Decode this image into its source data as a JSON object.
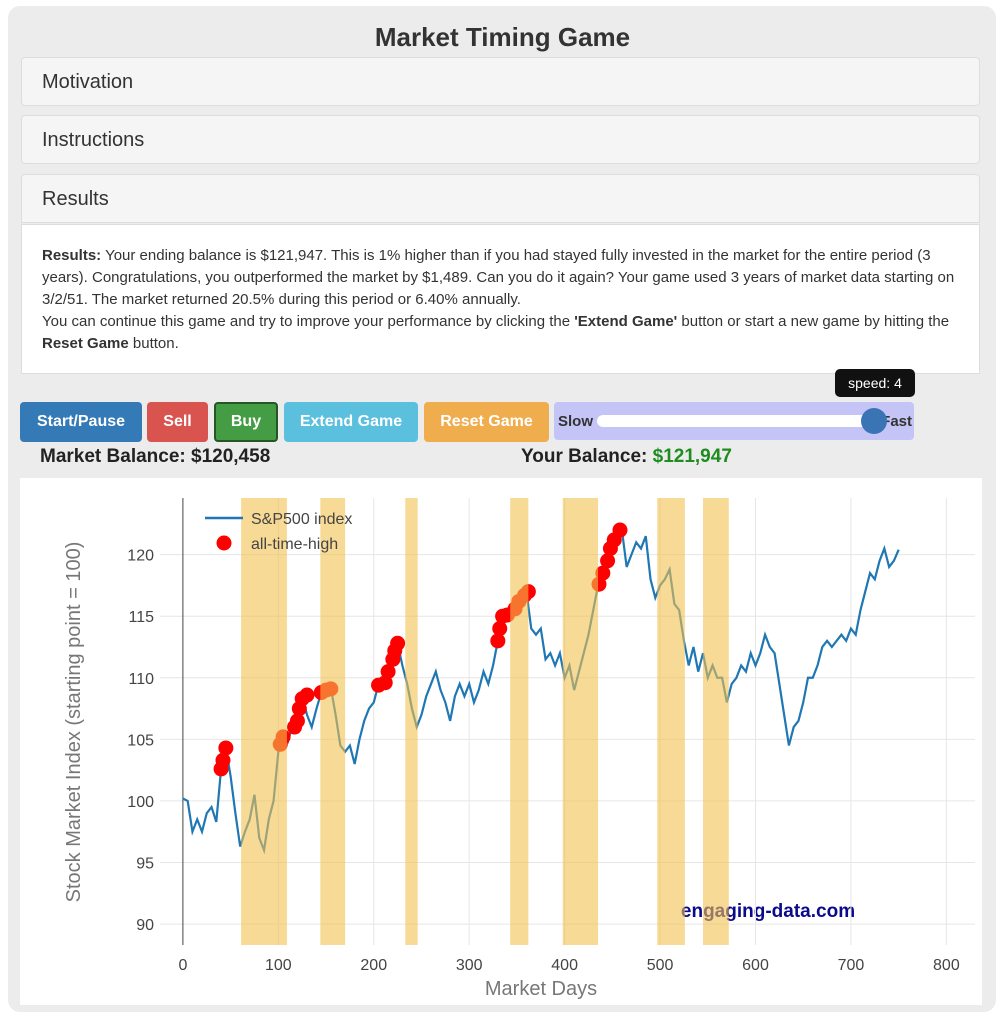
{
  "header": {
    "title": "Market Timing Game"
  },
  "panels": [
    "Motivation",
    "Instructions",
    "Results"
  ],
  "results": {
    "p1": [
      "Results:",
      " Your ending balance is $121,947. This is 1% higher than if you had stayed fully invested in the market for the entire period (3 years). Congratulations, you outperformed the market by $1,489. Can you do it again? Your game used 3 years of market data starting on 3/2/51. The market returned 20.5% during this period or 6.40% annually."
    ],
    "p2": [
      "You can continue this game and try to improve your performance by clicking the ",
      "'Extend Game'",
      " button or start a new game by hitting the ",
      "Reset Game",
      " button."
    ]
  },
  "buttons": [
    "Start/Pause",
    "Sell",
    "Buy",
    "Extend Game",
    "Reset Game"
  ],
  "slider": {
    "left": "Slow",
    "right": "Fast",
    "tooltip": "speed: 4"
  },
  "balances": {
    "market_label": "Market Balance:",
    "market_value": "$120,458",
    "your_label": "Your Balance:",
    "your_value": "$121,947"
  },
  "chart_data": {
    "type": "line",
    "xlabel": "Market Days",
    "ylabel": "Stock Market Index (starting point = 100)",
    "annotation": "engaging-data.com",
    "xlim": [
      -24,
      830
    ],
    "ylim": [
      88.3,
      124.6
    ],
    "xticks": [
      0,
      100,
      200,
      300,
      400,
      500,
      600,
      700,
      800
    ],
    "yticks": [
      90,
      95,
      100,
      105,
      110,
      115,
      120
    ],
    "grid": true,
    "shaded_ranges": [
      [
        61,
        109
      ],
      [
        144,
        170
      ],
      [
        233,
        246
      ],
      [
        343,
        362
      ],
      [
        398,
        435
      ],
      [
        497,
        526
      ],
      [
        545,
        572
      ]
    ],
    "series": [
      {
        "name": "S&P500 index",
        "color": "#1f77b4",
        "x": [
          0,
          5,
          10,
          15,
          20,
          25,
          30,
          35,
          40,
          45,
          50,
          55,
          60,
          65,
          70,
          75,
          80,
          85,
          90,
          95,
          100,
          105,
          110,
          115,
          120,
          125,
          130,
          135,
          140,
          145,
          150,
          155,
          160,
          165,
          170,
          175,
          180,
          185,
          190,
          195,
          200,
          205,
          210,
          215,
          220,
          225,
          230,
          235,
          240,
          245,
          250,
          255,
          260,
          265,
          270,
          275,
          280,
          285,
          290,
          295,
          300,
          305,
          310,
          315,
          320,
          325,
          330,
          335,
          340,
          345,
          350,
          355,
          360,
          365,
          370,
          375,
          380,
          385,
          390,
          395,
          400,
          405,
          410,
          415,
          420,
          425,
          430,
          435,
          440,
          445,
          450,
          455,
          460,
          465,
          470,
          475,
          480,
          485,
          490,
          495,
          500,
          505,
          510,
          515,
          520,
          525,
          530,
          535,
          540,
          545,
          550,
          555,
          560,
          565,
          570,
          575,
          580,
          585,
          590,
          595,
          600,
          605,
          610,
          615,
          620,
          625,
          630,
          635,
          640,
          645,
          650,
          655,
          660,
          665,
          670,
          675,
          680,
          685,
          690,
          695,
          700,
          705,
          710,
          715,
          720,
          725,
          730,
          735,
          740,
          745,
          750
        ],
        "values": [
          100.2,
          100,
          97.5,
          98.5,
          97.5,
          99,
          99.5,
          98.3,
          102.6,
          104.3,
          102,
          99,
          96.3,
          97.5,
          98.5,
          100.5,
          97,
          96,
          98.5,
          100,
          104,
          105.2,
          104.8,
          106.2,
          107.5,
          108.5,
          107,
          106,
          107.5,
          108.8,
          109,
          109.2,
          107,
          104.5,
          104,
          104.5,
          103,
          105,
          106.5,
          107.5,
          108,
          109.5,
          109.5,
          110.5,
          111.5,
          112.8,
          111,
          109.5,
          107.5,
          106,
          107,
          108.5,
          109.5,
          110.5,
          109,
          108,
          106.5,
          108.5,
          109.5,
          108.5,
          109.5,
          108,
          109,
          110.5,
          109.5,
          111,
          113,
          115,
          115,
          115.5,
          116,
          116.5,
          117,
          114,
          113.5,
          114,
          111.5,
          112,
          111,
          112,
          110,
          111,
          109,
          110.5,
          112,
          113.5,
          115.5,
          117.5,
          118.5,
          119.5,
          120.5,
          121.3,
          122,
          119,
          120,
          121,
          120.5,
          121.5,
          118,
          116.5,
          117.5,
          118,
          118.8,
          116,
          115.5,
          113,
          111,
          112.5,
          110.5,
          112,
          110,
          111,
          110,
          110,
          108,
          109.5,
          110,
          111,
          110.5,
          112,
          111,
          112,
          113.5,
          112.5,
          112,
          109.5,
          107,
          104.5,
          106,
          106.5,
          108,
          110,
          110,
          111,
          112.5,
          113,
          112.5,
          113,
          113.5,
          113,
          114,
          113.5,
          115.5,
          117,
          118.5,
          118,
          119.5,
          120.5,
          119,
          119.5,
          120.4
        ]
      },
      {
        "name": "all-time-high",
        "color": "#ff0000",
        "x": [
          40,
          42,
          45,
          102,
          105,
          117,
          120,
          122,
          125,
          130,
          145,
          150,
          155,
          205,
          212,
          215,
          220,
          222,
          225,
          330,
          332,
          335,
          340,
          348,
          352,
          358,
          362,
          436,
          440,
          445,
          448,
          452,
          458
        ],
        "values": [
          102.6,
          103.3,
          104.3,
          104.6,
          105.2,
          106,
          106.5,
          107.5,
          108.3,
          108.6,
          108.8,
          109,
          109.1,
          109.4,
          109.6,
          110.5,
          111.5,
          112.2,
          112.8,
          113,
          114,
          115,
          115.1,
          115.6,
          116.2,
          116.7,
          117,
          117.6,
          118.5,
          119.5,
          120.5,
          121.2,
          122
        ]
      }
    ]
  }
}
